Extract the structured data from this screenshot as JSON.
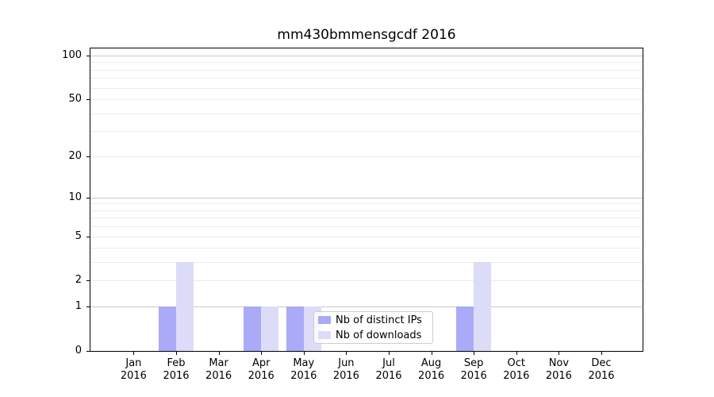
{
  "chart_data": {
    "type": "bar",
    "title": "mm430bmmensgcdf 2016",
    "months": [
      "Jan",
      "Feb",
      "Mar",
      "Apr",
      "May",
      "Jun",
      "Jul",
      "Aug",
      "Sep",
      "Oct",
      "Nov",
      "Dec"
    ],
    "year": "2016",
    "categories": [
      "Jan 2016",
      "Feb 2016",
      "Mar 2016",
      "Apr 2016",
      "May 2016",
      "Jun 2016",
      "Jul 2016",
      "Aug 2016",
      "Sep 2016",
      "Oct 2016",
      "Nov 2016",
      "Dec 2016"
    ],
    "series": [
      {
        "name": "Nb of distinct IPs",
        "color": "#aaaaf8",
        "values": [
          0,
          1,
          0,
          1,
          1,
          0,
          0,
          0,
          1,
          0,
          0,
          0
        ]
      },
      {
        "name": "Nb of downloads",
        "color": "#dcdcf8",
        "values": [
          0,
          3,
          0,
          1,
          1,
          0,
          0,
          0,
          3,
          0,
          0,
          0
        ]
      }
    ],
    "ylabel": "",
    "xlabel": "",
    "yscale": "log10(1+v)",
    "ylim": [
      0,
      101
    ],
    "yticks": [
      0,
      1,
      2,
      5,
      10,
      20,
      50,
      100
    ],
    "grid_major": [
      1,
      10,
      100
    ],
    "grid_minor": [
      2,
      3,
      4,
      5,
      6,
      7,
      8,
      9,
      20,
      30,
      40,
      50,
      60,
      70,
      80,
      90
    ],
    "grid": "horizontal",
    "legend_position": "lower center",
    "colors": {
      "grid_major": "#c8c8c8",
      "grid_minor": "#ebebeb",
      "spine": "#000000",
      "background": "#ffffff"
    }
  }
}
